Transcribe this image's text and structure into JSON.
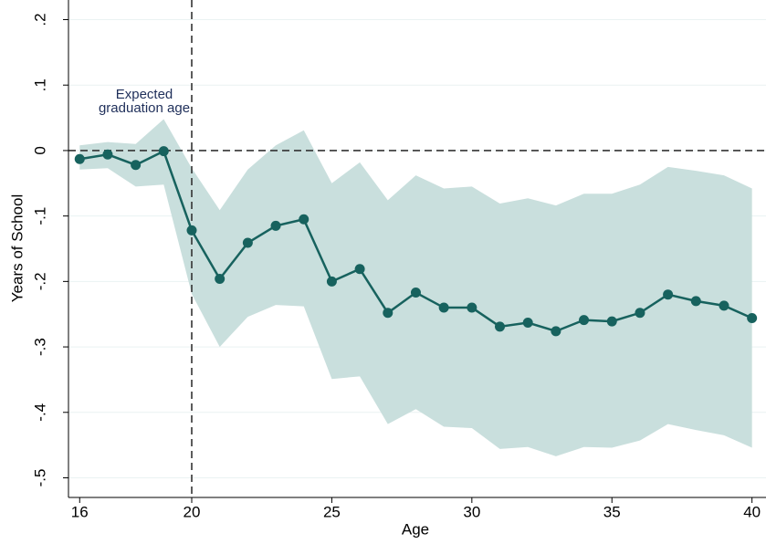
{
  "chart_data": {
    "type": "line",
    "x_label": "Age",
    "y_label": "Years of School",
    "annotation": [
      "Expected",
      "graduation age"
    ],
    "x": [
      16,
      17,
      18,
      19,
      20,
      21,
      22,
      23,
      24,
      25,
      26,
      27,
      28,
      29,
      30,
      31,
      32,
      33,
      34,
      35,
      36,
      37,
      38,
      39,
      40
    ],
    "values": [
      -0.013,
      -0.006,
      -0.022,
      -0.001,
      -0.122,
      -0.196,
      -0.141,
      -0.115,
      -0.105,
      -0.2,
      -0.181,
      -0.248,
      -0.217,
      -0.24,
      -0.24,
      -0.269,
      -0.263,
      -0.276,
      -0.259,
      -0.261,
      -0.248,
      -0.22,
      -0.23,
      -0.237,
      -0.256
    ],
    "ci_upper": [
      0.008,
      0.013,
      0.01,
      0.048,
      -0.027,
      -0.091,
      -0.029,
      0.008,
      0.031,
      -0.05,
      -0.018,
      -0.076,
      -0.038,
      -0.058,
      -0.055,
      -0.081,
      -0.073,
      -0.084,
      -0.066,
      -0.066,
      -0.052,
      -0.025,
      -0.031,
      -0.038,
      -0.058
    ],
    "ci_lower": [
      -0.029,
      -0.027,
      -0.055,
      -0.052,
      -0.219,
      -0.3,
      -0.254,
      -0.236,
      -0.238,
      -0.349,
      -0.345,
      -0.418,
      -0.395,
      -0.422,
      -0.424,
      -0.456,
      -0.453,
      -0.467,
      -0.453,
      -0.454,
      -0.443,
      -0.418,
      -0.427,
      -0.435,
      -0.454
    ],
    "color": "#17625e",
    "band_color": "#c9dfdd",
    "vline": 20,
    "hline": 0,
    "xlim": [
      15.6,
      40.5
    ],
    "ylim": [
      -0.53,
      0.23
    ],
    "xticks": [
      16,
      20,
      25,
      30,
      35,
      40
    ],
    "yticks": [
      {
        "value": 0.2,
        "label": ".2"
      },
      {
        "value": 0.1,
        "label": ".1"
      },
      0,
      {
        "value": -0.1,
        "label": "-.1"
      },
      {
        "value": -0.2,
        "label": "-.2"
      },
      {
        "value": -0.3,
        "label": "-.3"
      },
      {
        "value": -0.4,
        "label": "-.4"
      },
      {
        "value": -0.5,
        "label": "-.5"
      }
    ],
    "grid": true
  }
}
